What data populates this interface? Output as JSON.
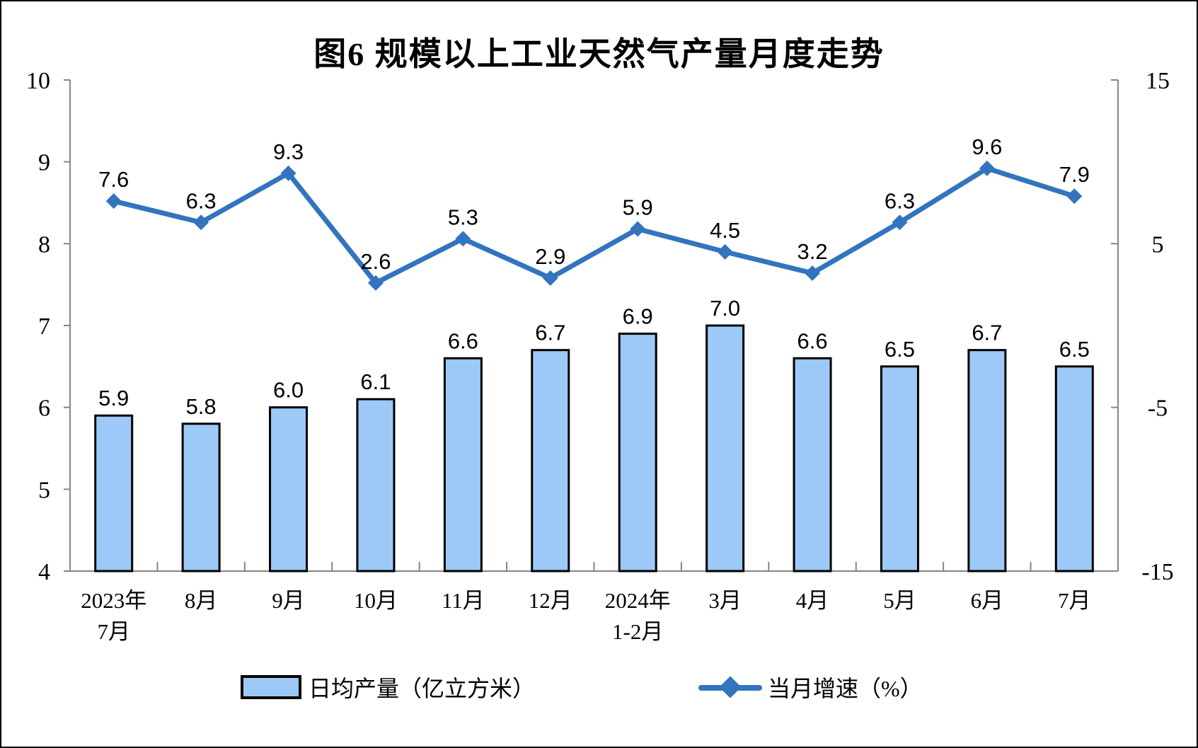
{
  "title": "图6 规模以上工业天然气产量月度走势",
  "colors": {
    "bar_fill": "#9DC9F8",
    "bar_stroke": "#000000",
    "line": "#3274BE",
    "axis": "#858585",
    "label_text": "#000000"
  },
  "legend": {
    "bar_label": "日均产量（亿立方米）",
    "line_label": "当月增速（%）"
  },
  "chart_data": {
    "type": "combo",
    "title": "图6 规模以上工业天然气产量月度走势",
    "categories": [
      [
        "2023年",
        "7月"
      ],
      [
        "8月"
      ],
      [
        "9月"
      ],
      [
        "10月"
      ],
      [
        "11月"
      ],
      [
        "12月"
      ],
      [
        "2024年",
        "1-2月"
      ],
      [
        "3月"
      ],
      [
        "4月"
      ],
      [
        "5月"
      ],
      [
        "6月"
      ],
      [
        "7月"
      ]
    ],
    "series": [
      {
        "name": "日均产量（亿立方米）",
        "type": "bar",
        "axis": "left",
        "values": [
          5.9,
          5.8,
          6.0,
          6.1,
          6.6,
          6.7,
          6.9,
          7.0,
          6.6,
          6.5,
          6.7,
          6.5
        ]
      },
      {
        "name": "当月增速（%）",
        "type": "line",
        "axis": "right",
        "values": [
          7.6,
          6.3,
          9.3,
          2.6,
          5.3,
          2.9,
          5.9,
          4.5,
          3.2,
          6.3,
          9.6,
          7.9
        ]
      }
    ],
    "left_axis": {
      "min": 4,
      "max": 10,
      "ticks": [
        10,
        9,
        8,
        7,
        6,
        5,
        4
      ]
    },
    "right_axis": {
      "min": -15,
      "max": 15,
      "ticks": [
        15,
        5,
        -5,
        -15
      ]
    },
    "grid": false,
    "legend_position": "bottom",
    "data_labels": true
  }
}
